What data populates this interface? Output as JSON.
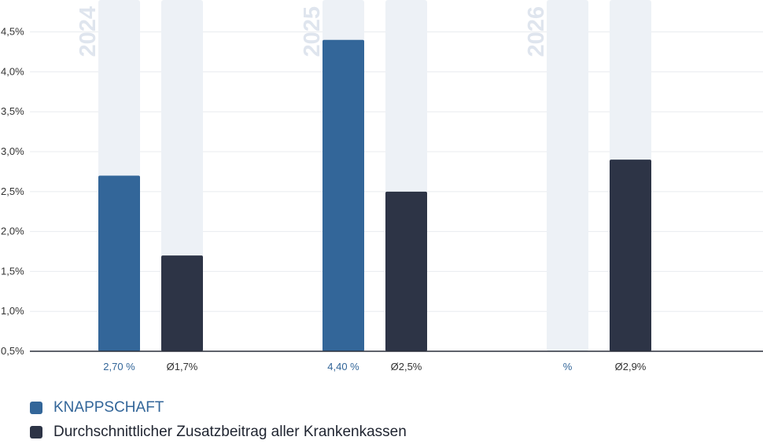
{
  "chart_data": {
    "type": "bar",
    "categories": [
      "2024",
      "2025",
      "2026"
    ],
    "series": [
      {
        "name": "KNAPPSCHAFT",
        "values": [
          2.7,
          4.4,
          null
        ],
        "labels": [
          "2,70 %",
          "4,40 %",
          "%"
        ],
        "color": "#336699"
      },
      {
        "name": "Durchschnittlicher Zusatzbeitrag aller Krankenkassen",
        "values": [
          1.7,
          2.5,
          2.9
        ],
        "labels": [
          "Ø1,7%",
          "Ø2,5%",
          "Ø2,9%"
        ],
        "color": "#2d3446"
      }
    ],
    "yticks": [
      "0,5%",
      "1,0%",
      "1,5%",
      "2,0%",
      "2,5%",
      "3,0%",
      "3,5%",
      "4,0%",
      "4,5%"
    ],
    "ylim": [
      0.5,
      4.9
    ],
    "grid": true,
    "legend": "bottom-left",
    "colors": {
      "track": "#edf1f6",
      "grid": "#e8ebef",
      "axis": "#2a2f3a",
      "year_label": "#dfe5ee",
      "tick_text": "#333333"
    }
  }
}
